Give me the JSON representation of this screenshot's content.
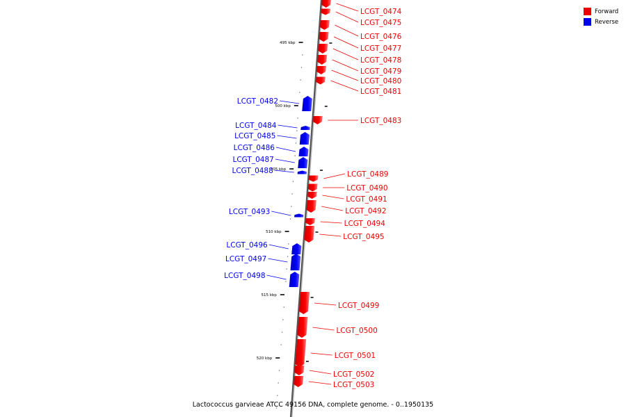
{
  "caption": "Lactococcus garvieae ATCC 49156 DNA, complete genome. - 0..1950135",
  "legend": [
    {
      "label": "Forward",
      "color": "#ee0000"
    },
    {
      "label": "Reverse",
      "color": "#0000ee"
    }
  ],
  "colors": {
    "forward": "#ee0000",
    "reverse": "#0000ee",
    "axis": "#555555"
  },
  "scale_labels": [
    "495 kbp",
    "500 kbp",
    "505 kbp",
    "510 kbp",
    "515 kbp",
    "520 kbp"
  ],
  "genes": [
    {
      "name": "LCGT_0474",
      "strand": "forward"
    },
    {
      "name": "LCGT_0475",
      "strand": "forward"
    },
    {
      "name": "LCGT_0476",
      "strand": "forward"
    },
    {
      "name": "LCGT_0477",
      "strand": "forward"
    },
    {
      "name": "LCGT_0478",
      "strand": "forward"
    },
    {
      "name": "LCGT_0479",
      "strand": "forward"
    },
    {
      "name": "LCGT_0480",
      "strand": "forward"
    },
    {
      "name": "LCGT_0481",
      "strand": "forward"
    },
    {
      "name": "LCGT_0482",
      "strand": "reverse"
    },
    {
      "name": "LCGT_0483",
      "strand": "forward"
    },
    {
      "name": "LCGT_0484",
      "strand": "reverse"
    },
    {
      "name": "LCGT_0485",
      "strand": "reverse"
    },
    {
      "name": "LCGT_0486",
      "strand": "reverse"
    },
    {
      "name": "LCGT_0487",
      "strand": "reverse"
    },
    {
      "name": "LCGT_0488",
      "strand": "reverse"
    },
    {
      "name": "LCGT_0489",
      "strand": "forward"
    },
    {
      "name": "LCGT_0490",
      "strand": "forward"
    },
    {
      "name": "LCGT_0491",
      "strand": "forward"
    },
    {
      "name": "LCGT_0492",
      "strand": "forward"
    },
    {
      "name": "LCGT_0493",
      "strand": "reverse"
    },
    {
      "name": "LCGT_0494",
      "strand": "forward"
    },
    {
      "name": "LCGT_0495",
      "strand": "forward"
    },
    {
      "name": "LCGT_0496",
      "strand": "reverse"
    },
    {
      "name": "LCGT_0497",
      "strand": "reverse"
    },
    {
      "name": "LCGT_0498",
      "strand": "reverse"
    },
    {
      "name": "LCGT_0499",
      "strand": "forward"
    },
    {
      "name": "LCGT_0500",
      "strand": "forward"
    },
    {
      "name": "LCGT_0501",
      "strand": "forward"
    },
    {
      "name": "LCGT_0502",
      "strand": "forward"
    },
    {
      "name": "LCGT_0503",
      "strand": "forward"
    }
  ]
}
